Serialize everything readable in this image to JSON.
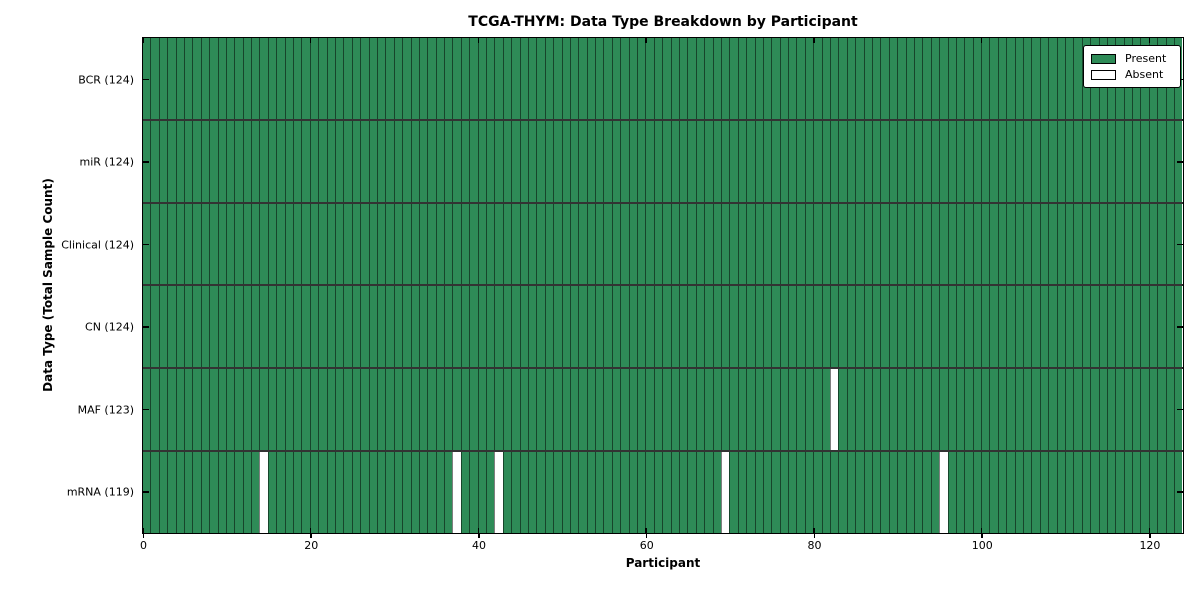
{
  "chart_data": {
    "type": "heatmap",
    "title": "TCGA-THYM: Data Type Breakdown by Participant",
    "xlabel": "Participant",
    "ylabel": "Data Type (Total Sample Count)",
    "x_ticks": [
      0,
      20,
      40,
      60,
      80,
      100,
      120
    ],
    "xlim": [
      0,
      124
    ],
    "total_participants": 124,
    "rows": [
      {
        "data_type": "BCR",
        "label": "BCR (124)",
        "present_count": 124,
        "absent_participants": []
      },
      {
        "data_type": "miR",
        "label": "miR (124)",
        "present_count": 124,
        "absent_participants": []
      },
      {
        "data_type": "Clinical",
        "label": "Clinical (124)",
        "present_count": 124,
        "absent_participants": []
      },
      {
        "data_type": "CN",
        "label": "CN (124)",
        "present_count": 124,
        "absent_participants": []
      },
      {
        "data_type": "MAF",
        "label": "MAF (123)",
        "present_count": 123,
        "absent_participants": [
          82
        ]
      },
      {
        "data_type": "mRNA",
        "label": "mRNA (119)",
        "present_count": 119,
        "absent_participants": [
          14,
          37,
          42,
          69,
          95
        ]
      }
    ],
    "legend": {
      "position": "upper right",
      "entries": [
        {
          "label": "Present",
          "color": "#2e8b57"
        },
        {
          "label": "Absent",
          "color": "#ffffff"
        }
      ]
    },
    "colors": {
      "present": "#2e8b57",
      "absent": "#ffffff",
      "cell_edge": "rgba(0,0,0,0.5)",
      "row_divider": "rgba(0,0,0,0.8)",
      "axis": "#000000"
    },
    "grid": false
  }
}
